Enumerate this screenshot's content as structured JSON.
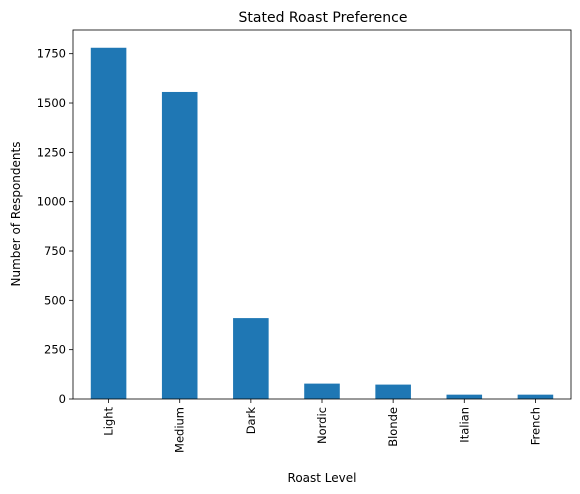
{
  "chart_data": {
    "type": "bar",
    "title": "Stated Roast Preference",
    "xlabel": "Roast Level",
    "ylabel": "Number of Respondents",
    "categories": [
      "Light",
      "Medium",
      "Dark",
      "Nordic",
      "Blonde",
      "Italian",
      "French"
    ],
    "values": [
      1780,
      1556,
      410,
      78,
      73,
      22,
      22
    ],
    "ylim": [
      0,
      1870
    ],
    "yticks": [
      0,
      250,
      500,
      750,
      1000,
      1250,
      1500,
      1750
    ],
    "grid": false,
    "legend": "none",
    "bar_color": "#1f77b4"
  }
}
